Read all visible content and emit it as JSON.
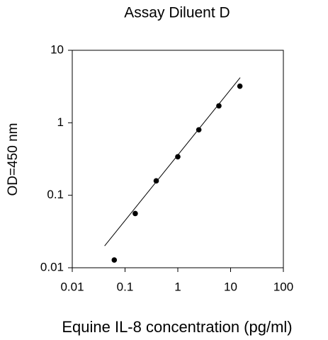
{
  "chart_data": {
    "type": "scatter",
    "title": "Assay Diluent D",
    "x_label": "Equine IL-8 concentration (pg/ml)",
    "y_label": "OD=450 nm",
    "x": [
      0.0625,
      0.156,
      0.39,
      1,
      2.5,
      6,
      15
    ],
    "values": [
      0.0128,
      0.056,
      0.158,
      0.34,
      0.8,
      1.71,
      3.2
    ],
    "color": "#000000",
    "trendline": {
      "x": [
        0.041,
        15.2
      ],
      "values": [
        0.02,
        4.2
      ],
      "color": "#000000"
    },
    "log_x": true,
    "log_y": true,
    "xlim": [
      0.01,
      100
    ],
    "ylim": [
      0.01,
      10
    ],
    "xticks": [
      0.01,
      0.1,
      1,
      10,
      100
    ],
    "yticks": [
      0.01,
      0.1,
      1,
      10
    ]
  }
}
